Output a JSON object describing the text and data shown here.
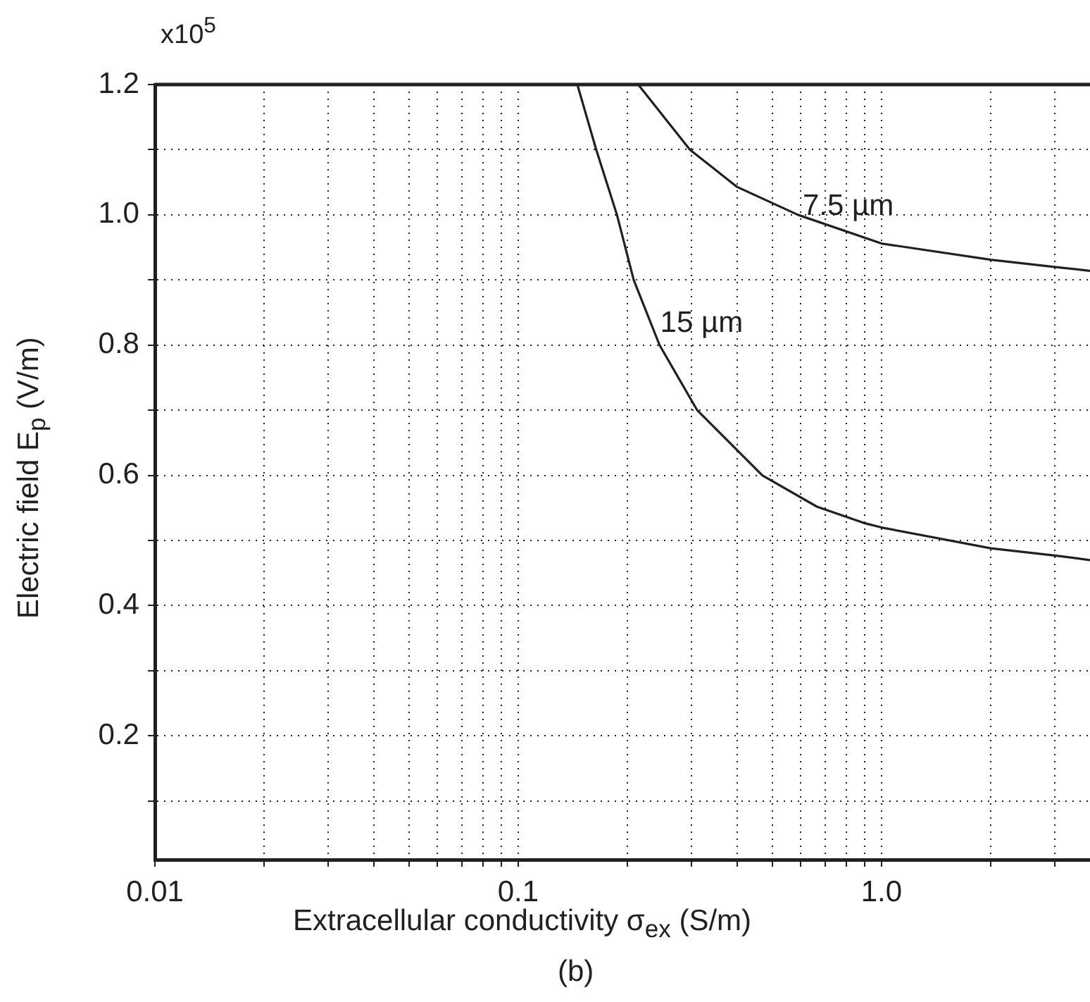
{
  "chart_data": {
    "type": "line",
    "xlabel": "Extracellular conductivity σ$_{ex}$ (S/m)",
    "ylabel": "Electric field E$_{p}$ (V/m)",
    "log": "x",
    "xlim": [
      0.01,
      3.75
    ],
    "ylim": [
      0.01,
      1.2
    ],
    "xticks": [
      0.01,
      {
        "value": 0.02,
        "label": null
      },
      {
        "value": 0.03,
        "label": null
      },
      {
        "value": 0.04,
        "label": null
      },
      {
        "value": 0.05,
        "label": null
      },
      {
        "value": 0.06,
        "label": null
      },
      {
        "value": 0.07,
        "label": null
      },
      {
        "value": 0.08,
        "label": null
      },
      {
        "value": 0.09,
        "label": null
      },
      0.1,
      {
        "value": 0.2,
        "label": null
      },
      {
        "value": 0.3,
        "label": null
      },
      {
        "value": 0.4,
        "label": null
      },
      {
        "value": 0.5,
        "label": null
      },
      {
        "value": 0.6,
        "label": null
      },
      {
        "value": 0.7,
        "label": null
      },
      {
        "value": 0.8,
        "label": null
      },
      {
        "value": 0.9,
        "label": null
      },
      {
        "value": 1,
        "label": "1.0"
      },
      {
        "value": 2,
        "label": null
      },
      {
        "value": 3,
        "label": null
      }
    ],
    "yticks": [
      {
        "value": 0.1,
        "label": null
      },
      0.2,
      {
        "value": 0.3,
        "label": null
      },
      0.4,
      {
        "value": 0.5,
        "label": null
      },
      0.6,
      {
        "value": 0.7,
        "label": null
      },
      0.8,
      {
        "value": 0.9,
        "label": null
      },
      {
        "value": 1,
        "label": "1.0"
      },
      {
        "value": 1.1,
        "label": null
      },
      1.2
    ],
    "grid": true,
    "marker": "none",
    "line_style": "solid",
    "series": [
      {
        "color": "#231f20",
        "x": [
          0.1455,
          0.164,
          0.187,
          0.208,
          0.245,
          0.311,
          0.47,
          0.664,
          0.893,
          1.0,
          2.0,
          3.0,
          3.75
        ],
        "values": [
          1.2,
          1.1,
          1.0,
          0.9,
          0.8,
          0.7,
          0.6,
          0.552,
          0.527,
          0.52,
          0.488,
          0.477,
          0.47
        ]
      },
      {
        "color": "#231f20",
        "x": [
          0.214,
          0.297,
          0.4,
          0.589,
          1.0,
          2.0,
          3.0,
          3.75
        ],
        "values": [
          1.2,
          1.1,
          1.043,
          1.0,
          0.956,
          0.931,
          0.92,
          0.914
        ]
      }
    ],
    "annotations": [
      {
        "text": "7.5 µm",
        "x": 0.607,
        "y": 1.0
      },
      {
        "text": "15 µm",
        "x": 0.246,
        "y": 0.82
      },
      "x10$^{5}$",
      "(b)"
    ]
  }
}
